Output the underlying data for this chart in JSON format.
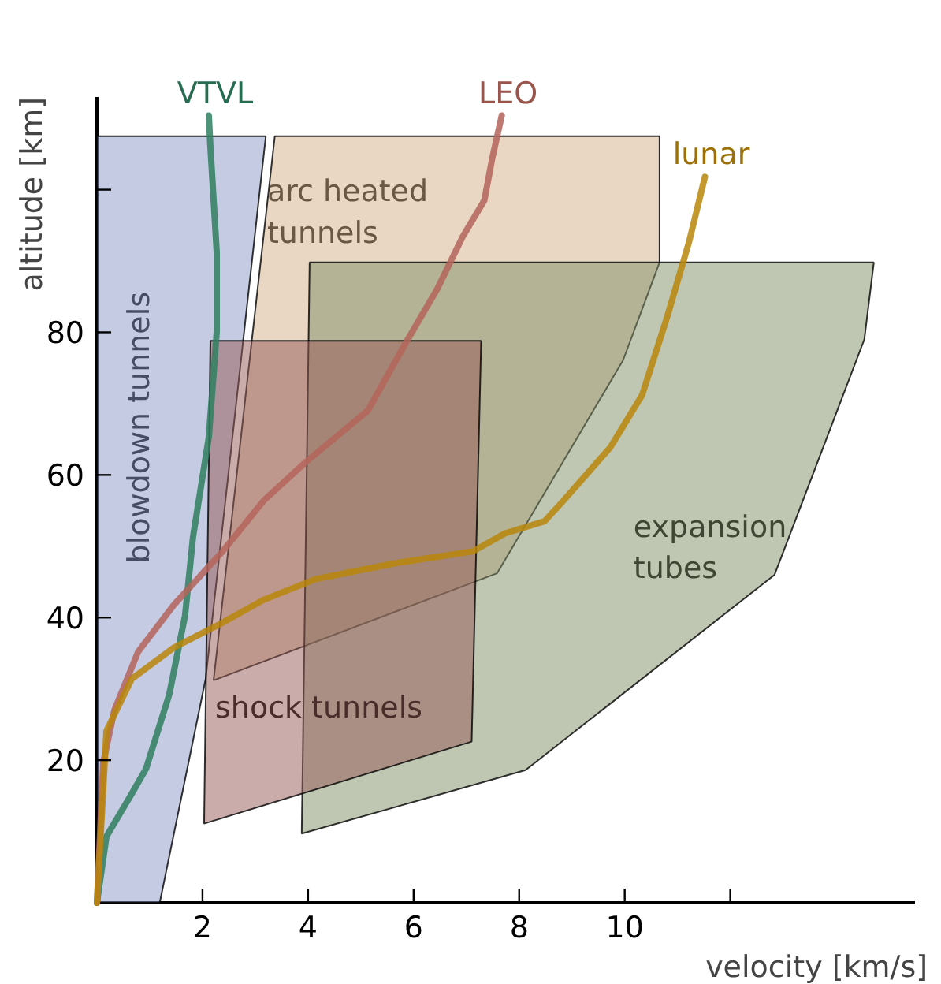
{
  "chart_data": {
    "type": "line",
    "xlabel": "velocity [km/s]",
    "ylabel": "altitude [km]",
    "xlim": [
      0,
      15.5
    ],
    "ylim": [
      0,
      113
    ],
    "xticks": [
      2,
      4,
      6,
      8,
      10,
      {
        "value": 12,
        "label": null
      }
    ],
    "yticks": [
      20,
      40,
      60,
      80,
      {
        "value": 100,
        "label": null
      }
    ],
    "grid": false,
    "legend": false,
    "series": [
      {
        "name": "blowdown tunnels",
        "type": "area",
        "color": "#8c98c6",
        "x": [
          0,
          0,
          3.2,
          2.06,
          1.19
        ],
        "values": [
          0,
          107.5,
          107.5,
          31.4,
          0
        ]
      },
      {
        "name": "arc heated tunnels",
        "type": "area",
        "color": "#d4b08a",
        "x": [
          3.37,
          10.66,
          10.66,
          9.97,
          7.58,
          2.21
        ],
        "values": [
          107.5,
          107.5,
          89.8,
          76.1,
          46.2,
          31.2
        ]
      },
      {
        "name": "expansion tubes",
        "type": "area",
        "color": "#7f8f68",
        "x": [
          4.03,
          14.72,
          14.54,
          12.84,
          8.12,
          3.88
        ],
        "values": [
          89.8,
          89.8,
          79,
          46,
          18.6,
          9.7
        ]
      },
      {
        "name": "shock tunnels",
        "type": "area",
        "color": "#955a55",
        "x": [
          2.15,
          7.28,
          7.1,
          2.03
        ],
        "values": [
          78.8,
          78.8,
          22.6,
          11.1
        ]
      },
      {
        "name": "VTVL",
        "color": "#2f7f5f",
        "x": [
          0,
          0.18,
          0.66,
          0.93,
          1.37,
          1.67,
          1.82,
          2.12,
          2.27,
          2.27,
          2.15,
          2.12
        ],
        "values": [
          0,
          9.3,
          15.3,
          18.8,
          29.2,
          40.3,
          51.3,
          65.3,
          80.1,
          91.2,
          106,
          110.4
        ]
      },
      {
        "name": "LEO",
        "color": "#b4645a",
        "x": [
          0,
          0.12,
          0.33,
          0.78,
          1.46,
          2.36,
          3.16,
          3.94,
          5.13,
          5.85,
          6.45,
          6.93,
          7.34,
          7.49,
          7.67
        ],
        "values": [
          0,
          19.7,
          27,
          35.2,
          41.8,
          49.1,
          56.4,
          61.7,
          69,
          78.5,
          86.1,
          93.4,
          98.5,
          104.4,
          110.4
        ]
      },
      {
        "name": "lunar",
        "color": "#b8860b",
        "x": [
          0,
          0.18,
          0.66,
          1.46,
          2.36,
          3.16,
          4.15,
          5.64,
          7.13,
          7.73,
          8.48,
          8.84,
          9.73,
          10.33,
          10.81,
          11.22,
          11.52
        ],
        "values": [
          0,
          24.1,
          31.4,
          35.8,
          39.2,
          42.5,
          45.4,
          47.6,
          49.3,
          51.8,
          53.5,
          56.4,
          63.9,
          71.2,
          82.3,
          92.7,
          101.8
        ]
      }
    ]
  }
}
